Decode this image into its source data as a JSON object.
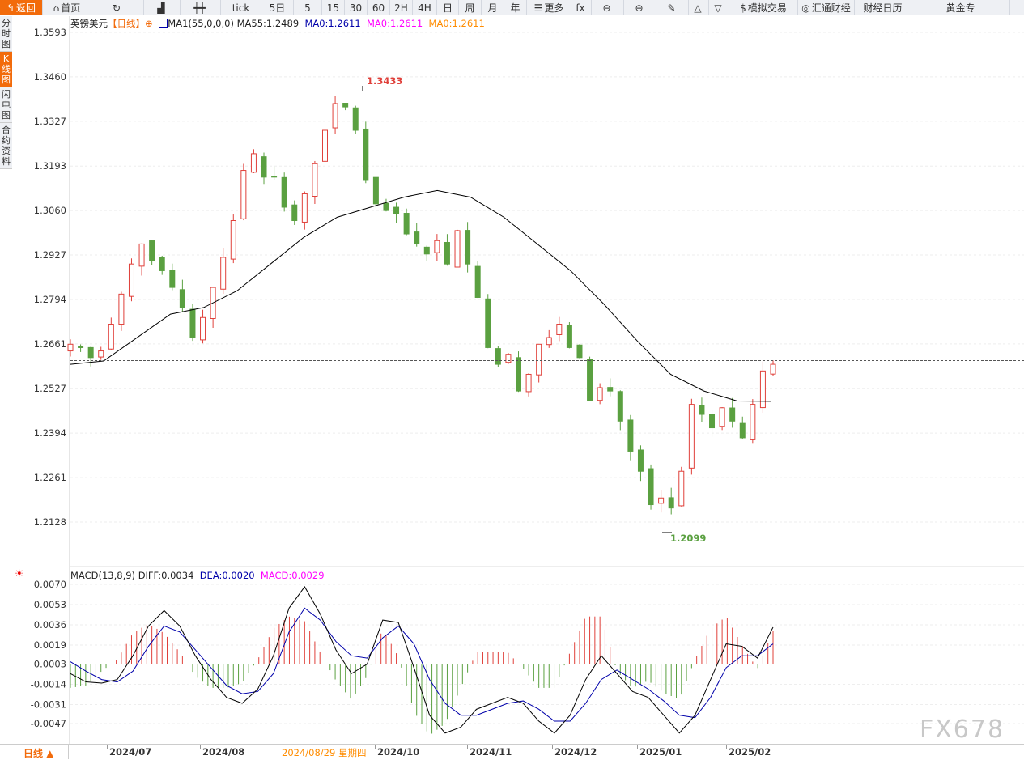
{
  "toolbar": [
    {
      "label": "返回",
      "icon": "back-arrow-icon"
    },
    {
      "label": "首页",
      "icon": "home-icon"
    },
    {
      "label": "",
      "icon": "refresh-icon"
    },
    {
      "label": "",
      "icon": "bar-chart-icon"
    },
    {
      "label": "",
      "icon": "candlestick-icon"
    },
    {
      "label": "tick"
    },
    {
      "label": "5日"
    },
    {
      "label": "5"
    },
    {
      "label": "15"
    },
    {
      "label": "30"
    },
    {
      "label": "60"
    },
    {
      "label": "2H"
    },
    {
      "label": "4H"
    },
    {
      "label": "日"
    },
    {
      "label": "周"
    },
    {
      "label": "月"
    },
    {
      "label": "年"
    },
    {
      "label": "更多",
      "icon": "menu-icon"
    },
    {
      "label": "",
      "icon": "fx-icon"
    },
    {
      "label": "",
      "icon": "zoom-out-icon"
    },
    {
      "label": "",
      "icon": "zoom-in-icon"
    },
    {
      "label": "",
      "icon": "pen-icon"
    },
    {
      "label": "",
      "icon": "triangle-up-icon"
    },
    {
      "label": "",
      "icon": "triangle-down-icon"
    },
    {
      "label": "模拟交易",
      "icon": "dollar-icon"
    },
    {
      "label": "汇通财经",
      "icon": "logo-icon"
    },
    {
      "label": "财经日历"
    },
    {
      "label": "黄金专"
    }
  ],
  "sidebar": [
    "分时图",
    "K线图",
    "闪电图",
    "合约资料"
  ],
  "legend": {
    "symbol": "英镑美元",
    "period": "【日线】",
    "ma1": "MA1(55,0,0,0)",
    "ma55": "MA55:1.2489",
    "ma0a": "MA0:1.2611",
    "ma0b": "MA0:1.2611",
    "ma0c": "MA0:1.2611"
  },
  "macd_legend": {
    "name": "MACD(13,8,9)",
    "diff": "DIFF:0.0034",
    "dea": "DEA:0.0020",
    "macd": "MACD:0.0029"
  },
  "colors": {
    "up": "#e0403a",
    "down": "#5aa040",
    "ma": "#000000",
    "dea": "#0000aa",
    "accent": "#f26b0b"
  },
  "chart_data": [
    {
      "type": "candlestick",
      "ylim": [
        1.2062,
        1.3593
      ],
      "yticks": [
        "1.3593",
        "1.3460",
        "1.3327",
        "1.3193",
        "1.3060",
        "1.2927",
        "1.2794",
        "1.2661",
        "1.2527",
        "1.2394",
        "1.2261",
        "1.2128"
      ],
      "close": [
        1.266,
        1.265,
        1.262,
        1.264,
        1.272,
        1.281,
        1.29,
        1.296,
        1.291,
        1.288,
        1.283,
        1.277,
        1.268,
        1.274,
        1.283,
        1.292,
        1.303,
        1.318,
        1.323,
        1.316,
        1.316,
        1.307,
        1.303,
        1.311,
        1.32,
        1.33,
        1.338,
        1.337,
        1.33,
        1.315,
        1.308,
        1.306,
        1.305,
        1.299,
        1.296,
        1.293,
        1.297,
        1.29,
        1.3,
        1.29,
        1.28,
        1.265,
        1.26,
        1.263,
        1.252,
        1.257,
        1.266,
        1.268,
        1.272,
        1.265,
        1.262,
        1.249,
        1.253,
        1.252,
        1.243,
        1.234,
        1.228,
        1.218,
        1.22,
        1.217,
        1.228,
        1.248,
        1.245,
        1.241,
        1.247,
        1.243,
        1.238,
        1.248,
        1.258,
        1.26
      ],
      "ma55": [
        1.26,
        1.261,
        1.268,
        1.275,
        1.277,
        1.282,
        1.29,
        1.298,
        1.304,
        1.307,
        1.31,
        1.312,
        1.31,
        1.304,
        1.296,
        1.288,
        1.278,
        1.267,
        1.257,
        1.252,
        1.249,
        1.2489
      ],
      "last_price": 1.2611,
      "high_label": "1.3433",
      "low_label": "1.2099",
      "xticks": [
        "2024/07",
        "2024/08",
        "2024/10",
        "2024/11",
        "2024/12",
        "2025/01",
        "2025/02"
      ],
      "cursor_date": "2024/08/29 星期四"
    },
    {
      "type": "macd",
      "ylim": [
        -0.0058,
        0.0075
      ],
      "yticks": [
        "0.0070",
        "0.0053",
        "0.0036",
        "0.0019",
        "0.0003",
        "-0.0014",
        "-0.0031",
        "-0.0047"
      ],
      "diff": [
        -0.0005,
        -0.0012,
        -0.0013,
        -0.001,
        0.001,
        0.0035,
        0.0048,
        0.0035,
        0.001,
        -0.001,
        -0.0025,
        -0.003,
        -0.0018,
        0.001,
        0.005,
        0.0068,
        0.0045,
        0.0015,
        -0.0005,
        0.0003,
        0.004,
        0.0038,
        0.0,
        -0.004,
        -0.0055,
        -0.005,
        -0.0035,
        -0.003,
        -0.0025,
        -0.003,
        -0.0045,
        -0.0055,
        -0.004,
        -0.001,
        0.001,
        -0.0005,
        -0.002,
        -0.0025,
        -0.004,
        -0.0055,
        -0.004,
        -0.001,
        0.002,
        0.0018,
        0.0008,
        0.0034
      ],
      "dea": [
        0.0005,
        -0.0003,
        -0.001,
        -0.0012,
        -0.0003,
        0.0018,
        0.0035,
        0.003,
        0.0015,
        0.0,
        -0.0015,
        -0.0022,
        -0.002,
        -0.0005,
        0.003,
        0.005,
        0.004,
        0.0022,
        0.001,
        0.0008,
        0.0025,
        0.0035,
        0.002,
        -0.001,
        -0.003,
        -0.004,
        -0.004,
        -0.0035,
        -0.003,
        -0.0028,
        -0.0035,
        -0.0045,
        -0.0045,
        -0.003,
        -0.001,
        -0.0002,
        -0.001,
        -0.0018,
        -0.0028,
        -0.004,
        -0.0042,
        -0.0025,
        0.0,
        0.001,
        0.001,
        0.002
      ]
    }
  ],
  "bottom": {
    "period_button": "日线 ▲"
  },
  "watermark": "FX678"
}
